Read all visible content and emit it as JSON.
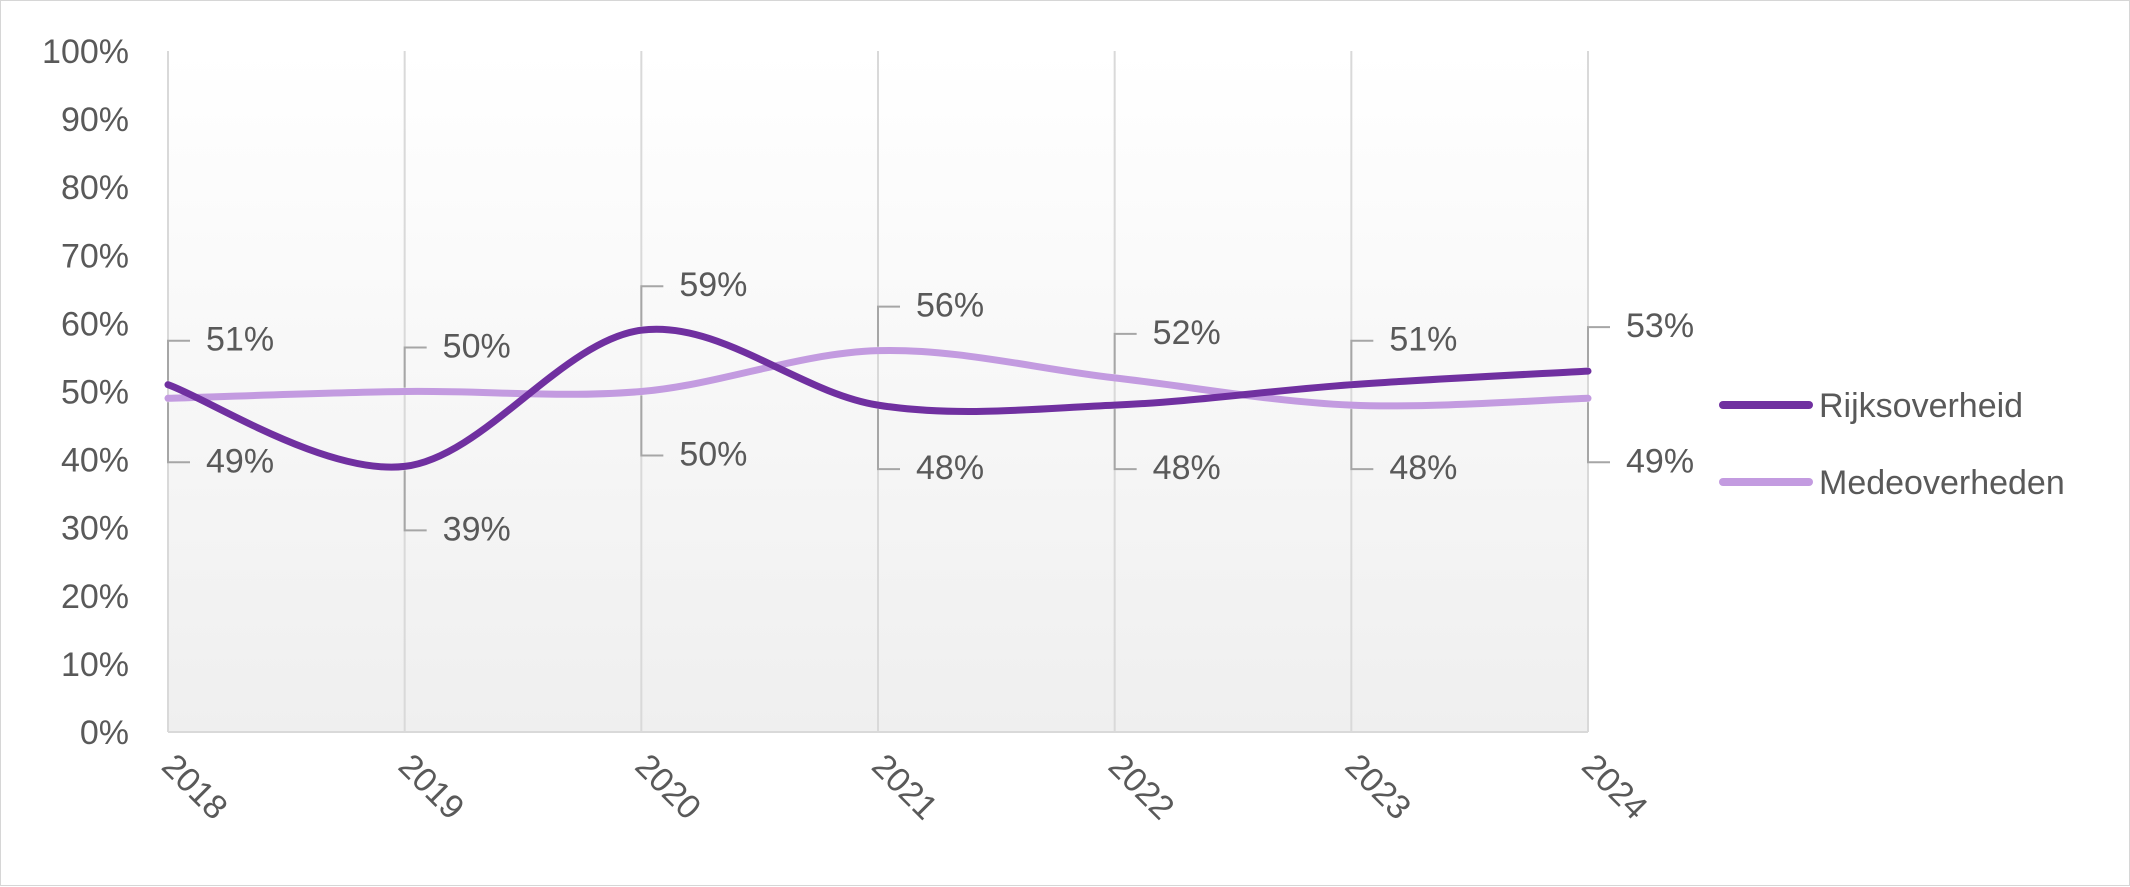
{
  "chart_data": {
    "type": "line",
    "title": "",
    "xlabel": "",
    "ylabel": "",
    "categories": [
      "2018",
      "2019",
      "2020",
      "2021",
      "2022",
      "2023",
      "2024"
    ],
    "ylim": [
      0,
      100
    ],
    "y_ticks": [
      "0%",
      "10%",
      "20%",
      "30%",
      "40%",
      "50%",
      "60%",
      "70%",
      "80%",
      "90%",
      "100%"
    ],
    "smooth": true,
    "grid": "vertical",
    "legend_position": "right",
    "series": [
      {
        "name": "Rijksoverheid",
        "color": "#7030A0",
        "values": [
          51,
          39,
          59,
          48,
          48,
          51,
          53
        ],
        "labels": [
          "51%",
          "39%",
          "59%",
          "48%",
          "48%",
          "51%",
          "53%"
        ]
      },
      {
        "name": "Medeoverheden",
        "color": "#C39BE0",
        "values": [
          49,
          50,
          50,
          56,
          52,
          48,
          49
        ],
        "labels": [
          "49%",
          "50%",
          "50%",
          "56%",
          "52%",
          "48%",
          "49%"
        ]
      }
    ]
  }
}
